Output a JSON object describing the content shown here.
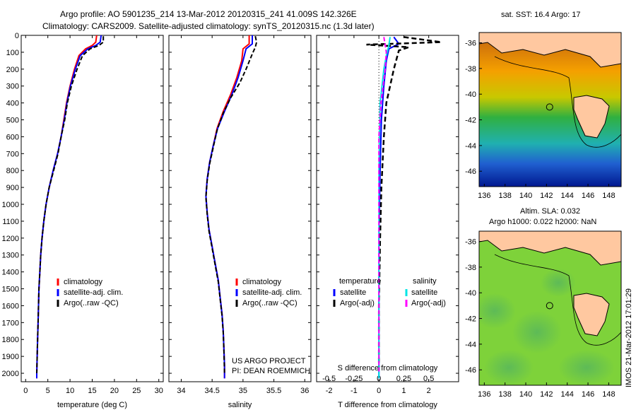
{
  "header": {
    "line1": "Argo profile: AO 5901235_214 13-Mar-2012 20120315_241 41.009S 142.326E",
    "line2": "Climatology: CARS2009. Satellite-adjusted climatology: synTS_20120315.nc (1.3d later)"
  },
  "footer_notes": {
    "project": "US ARGO PROJECT",
    "pi": "PI: DEAN ROEMMICH"
  },
  "side_stamp": "IMOS 21-Mar-2012 17:01:29",
  "colors": {
    "climatology": "#ff0000",
    "satellite": "#0000ff",
    "argo": "#000000",
    "sal_satellite": "#00e5e5",
    "sal_argo": "#ff00ff",
    "land": "#ffc8a0"
  },
  "chart_data": [
    {
      "id": "temperature",
      "type": "line",
      "xlabel": "temperature (deg C)",
      "ylim": [
        2050,
        0
      ],
      "xlim": [
        -1,
        31
      ],
      "xticks": [
        0,
        5,
        10,
        15,
        20,
        25,
        30
      ],
      "yticks": [
        0,
        100,
        200,
        300,
        400,
        500,
        600,
        700,
        800,
        900,
        1000,
        1100,
        1200,
        1300,
        1400,
        1500,
        1600,
        1700,
        1800,
        1900,
        2000
      ],
      "legend": [
        "climatology",
        "satellite-adj. clim.",
        "Argo(..raw -QC)"
      ],
      "series": [
        {
          "name": "climatology",
          "values": [
            [
              16,
              0
            ],
            [
              15.8,
              40
            ],
            [
              15,
              60
            ],
            [
              13.5,
              80
            ],
            [
              12,
              120
            ],
            [
              11,
              200
            ],
            [
              10,
              300
            ],
            [
              9.2,
              400
            ],
            [
              8.6,
              500
            ],
            [
              8,
              600
            ],
            [
              7.2,
              700
            ],
            [
              6.2,
              800
            ],
            [
              5.3,
              900
            ],
            [
              4.6,
              1000
            ],
            [
              4.1,
              1100
            ],
            [
              3.7,
              1200
            ],
            [
              3.4,
              1300
            ],
            [
              3.2,
              1400
            ],
            [
              3,
              1500
            ],
            [
              2.9,
              1600
            ],
            [
              2.8,
              1700
            ],
            [
              2.7,
              1800
            ],
            [
              2.6,
              1900
            ],
            [
              2.5,
              2000
            ],
            [
              2.5,
              2030
            ]
          ]
        },
        {
          "name": "satellite-adj. clim.",
          "values": [
            [
              17,
              0
            ],
            [
              16.8,
              40
            ],
            [
              15.8,
              60
            ],
            [
              14,
              80
            ],
            [
              12.3,
              120
            ],
            [
              11.2,
              200
            ],
            [
              10.1,
              300
            ],
            [
              9.3,
              400
            ],
            [
              8.7,
              500
            ],
            [
              8,
              600
            ],
            [
              7.2,
              700
            ],
            [
              6.2,
              800
            ],
            [
              5.3,
              900
            ],
            [
              4.6,
              1000
            ],
            [
              4.1,
              1100
            ],
            [
              3.7,
              1200
            ],
            [
              3.4,
              1300
            ],
            [
              3.2,
              1400
            ],
            [
              3,
              1500
            ],
            [
              2.9,
              1600
            ],
            [
              2.8,
              1700
            ],
            [
              2.7,
              1800
            ],
            [
              2.6,
              1900
            ],
            [
              2.5,
              2000
            ],
            [
              2.5,
              2030
            ]
          ]
        },
        {
          "name": "Argo(..raw -QC)",
          "values": [
            [
              17.5,
              5
            ],
            [
              17.5,
              40
            ],
            [
              16.5,
              60
            ],
            [
              14.5,
              80
            ],
            [
              12.8,
              120
            ],
            [
              11.6,
              200
            ],
            [
              10.3,
              300
            ],
            [
              9.4,
              400
            ],
            [
              8.8,
              500
            ],
            [
              8,
              600
            ],
            [
              7.3,
              700
            ],
            [
              6.3,
              800
            ],
            [
              5.3,
              900
            ],
            [
              4.6,
              1000
            ],
            [
              4.1,
              1100
            ],
            [
              3.7,
              1200
            ],
            [
              3.4,
              1300
            ],
            [
              3.2,
              1400
            ],
            [
              3,
              1500
            ],
            [
              2.9,
              1600
            ],
            [
              2.8,
              1700
            ],
            [
              2.7,
              1800
            ],
            [
              2.6,
              1900
            ],
            [
              2.5,
              2000
            ]
          ]
        }
      ]
    },
    {
      "id": "salinity",
      "type": "line",
      "xlabel": "salinity",
      "ylim": [
        2050,
        0
      ],
      "xlim": [
        33.8,
        36.1
      ],
      "xticks": [
        34,
        34.5,
        35,
        35.5,
        36
      ],
      "legend": [
        "climatology",
        "satellite-adj. clim.",
        "Argo(..raw -QC)"
      ],
      "series": [
        {
          "name": "climatology",
          "values": [
            [
              35.1,
              0
            ],
            [
              35.1,
              50
            ],
            [
              35,
              80
            ],
            [
              34.98,
              150
            ],
            [
              34.9,
              250
            ],
            [
              34.8,
              350
            ],
            [
              34.68,
              450
            ],
            [
              34.58,
              550
            ],
            [
              34.52,
              650
            ],
            [
              34.46,
              750
            ],
            [
              34.42,
              850
            ],
            [
              34.4,
              950
            ],
            [
              34.42,
              1050
            ],
            [
              34.45,
              1150
            ],
            [
              34.5,
              1250
            ],
            [
              34.55,
              1350
            ],
            [
              34.6,
              1450
            ],
            [
              34.63,
              1550
            ],
            [
              34.66,
              1650
            ],
            [
              34.68,
              1750
            ],
            [
              34.69,
              1850
            ],
            [
              34.7,
              1950
            ],
            [
              34.7,
              2030
            ]
          ]
        },
        {
          "name": "satellite-adj. clim.",
          "values": [
            [
              35.15,
              0
            ],
            [
              35.15,
              50
            ],
            [
              35.05,
              80
            ],
            [
              35,
              150
            ],
            [
              34.92,
              250
            ],
            [
              34.82,
              350
            ],
            [
              34.7,
              450
            ],
            [
              34.59,
              550
            ],
            [
              34.52,
              650
            ],
            [
              34.46,
              750
            ],
            [
              34.42,
              850
            ],
            [
              34.4,
              950
            ],
            [
              34.42,
              1050
            ],
            [
              34.45,
              1150
            ],
            [
              34.5,
              1250
            ],
            [
              34.55,
              1350
            ],
            [
              34.6,
              1450
            ],
            [
              34.63,
              1550
            ],
            [
              34.66,
              1650
            ],
            [
              34.68,
              1750
            ],
            [
              34.69,
              1850
            ],
            [
              34.7,
              1950
            ],
            [
              34.7,
              2030
            ]
          ]
        },
        {
          "name": "Argo(..raw -QC)",
          "values": [
            [
              35.2,
              5
            ],
            [
              35.22,
              40
            ],
            [
              35.2,
              70
            ],
            [
              35.15,
              110
            ],
            [
              35.05,
              200
            ],
            [
              34.95,
              280
            ],
            [
              34.8,
              370
            ],
            [
              34.68,
              460
            ],
            [
              34.58,
              560
            ],
            [
              34.52,
              660
            ],
            [
              34.46,
              760
            ],
            [
              34.42,
              860
            ],
            [
              34.4,
              960
            ],
            [
              34.42,
              1060
            ],
            [
              34.45,
              1160
            ],
            [
              34.5,
              1260
            ],
            [
              34.55,
              1360
            ],
            [
              34.6,
              1460
            ],
            [
              34.63,
              1560
            ],
            [
              34.66,
              1660
            ],
            [
              34.68,
              1760
            ],
            [
              34.69,
              1860
            ],
            [
              34.7,
              2000
            ]
          ]
        }
      ]
    },
    {
      "id": "differences",
      "type": "line",
      "xlabel": "T difference from climatology",
      "xlabel_top": "S difference from climatology",
      "ylim": [
        2050,
        0
      ],
      "xlim": [
        -2.5,
        3.2
      ],
      "xticks": [
        -2,
        -1,
        0,
        1,
        2
      ],
      "xticks_top": [
        "-0.5",
        "-0.25",
        "0",
        "0.25",
        "0.5"
      ],
      "legend": {
        "temperature_title": "temperature",
        "salinity_title": "salinity",
        "temperature": [
          "satellite",
          "Argo(-adj)"
        ],
        "salinity": [
          "satellite",
          "Argo(-adj)"
        ]
      },
      "series": [
        {
          "name": "T satellite",
          "values": [
            [
              0.6,
              10
            ],
            [
              0.8,
              50
            ],
            [
              0.4,
              80
            ],
            [
              0.3,
              150
            ],
            [
              0.2,
              300
            ],
            [
              0.1,
              500
            ],
            [
              0.05,
              800
            ],
            [
              0,
              1200
            ],
            [
              0,
              2030
            ]
          ]
        },
        {
          "name": "T Argo(-adj)",
          "values": [
            [
              1,
              10
            ],
            [
              2.5,
              40
            ],
            [
              -0.5,
              55
            ],
            [
              1.2,
              70
            ],
            [
              0.8,
              90
            ],
            [
              0.6,
              200
            ],
            [
              0.3,
              400
            ],
            [
              0.2,
              600
            ],
            [
              0.1,
              900
            ],
            [
              0.05,
              1200
            ],
            [
              0,
              1600
            ],
            [
              0,
              2000
            ]
          ]
        },
        {
          "name": "S satellite",
          "values": [
            [
              0.45,
              10
            ],
            [
              0.4,
              60
            ],
            [
              0.3,
              120
            ],
            [
              0.2,
              200
            ],
            [
              0.05,
              400
            ],
            [
              0,
              800
            ],
            [
              0,
              2030
            ]
          ]
        },
        {
          "name": "S Argo(-adj)",
          "values": [
            [
              0.2,
              10
            ],
            [
              0.3,
              100
            ],
            [
              0.25,
              200
            ],
            [
              0.08,
              400
            ],
            [
              0,
              600
            ],
            [
              0,
              2000
            ]
          ]
        }
      ]
    }
  ],
  "maps": {
    "sst": {
      "title": "sat. SST: 16.4  Argo: 17",
      "lon_ticks": [
        "136",
        "138",
        "140",
        "142",
        "144",
        "146",
        "148"
      ],
      "lat_ticks": [
        "-36",
        "-38",
        "-40",
        "-42",
        "-44",
        "-46"
      ],
      "argo_marker": {
        "lon": 142.3,
        "lat": -41.0
      }
    },
    "sla": {
      "title1": "Altim. SLA: 0.032",
      "title2": "Argo h1000: 0.022  h2000: NaN",
      "lon_ticks": [
        "136",
        "138",
        "140",
        "142",
        "144",
        "146",
        "148"
      ],
      "lat_ticks": [
        "-36",
        "-38",
        "-40",
        "-42",
        "-44",
        "-46"
      ],
      "argo_marker": {
        "lon": 142.3,
        "lat": -41.0
      }
    }
  }
}
